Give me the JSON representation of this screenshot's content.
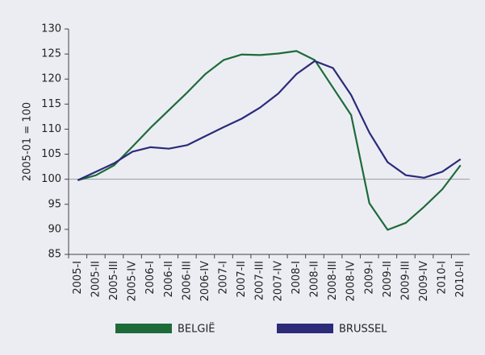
{
  "chart_data": {
    "type": "line",
    "y_label": "2005-01 = 100",
    "categories": [
      "2005-I",
      "2005-II",
      "2005-III",
      "2005-IV",
      "2006-I",
      "2006-II",
      "2006-III",
      "2006-IV",
      "2007-I",
      "2007-II",
      "2007-III",
      "2007-IV",
      "2008-I",
      "2008-II",
      "2008-III",
      "2008-IV",
      "2009-I",
      "2009-II",
      "2009-III",
      "2009-IV",
      "2010-I",
      "2010-II"
    ],
    "series": [
      {
        "name": "BELGIË",
        "color": "#1e6b3a",
        "values": [
          99.8,
          100.8,
          102.8,
          106.5,
          110.3,
          113.8,
          117.3,
          121,
          123.8,
          124.9,
          124.8,
          125.1,
          125.6,
          123.8,
          118.3,
          112.8,
          95.2,
          89.9,
          91.3,
          94.5,
          98,
          102.8
        ]
      },
      {
        "name": "BRUSSEL",
        "color": "#2b2b7a",
        "values": [
          99.8,
          101.5,
          103.2,
          105.5,
          106.4,
          106.1,
          106.8,
          108.6,
          110.4,
          112.1,
          114.3,
          117.1,
          121,
          123.6,
          122.2,
          116.8,
          109.3,
          103.4,
          100.8,
          100.3,
          101.5,
          104
        ]
      }
    ],
    "ylim": [
      85,
      130
    ],
    "yticks": [
      85,
      90,
      95,
      100,
      105,
      110,
      115,
      120,
      125,
      130
    ],
    "reference_line": 100,
    "legend": "bottom"
  }
}
